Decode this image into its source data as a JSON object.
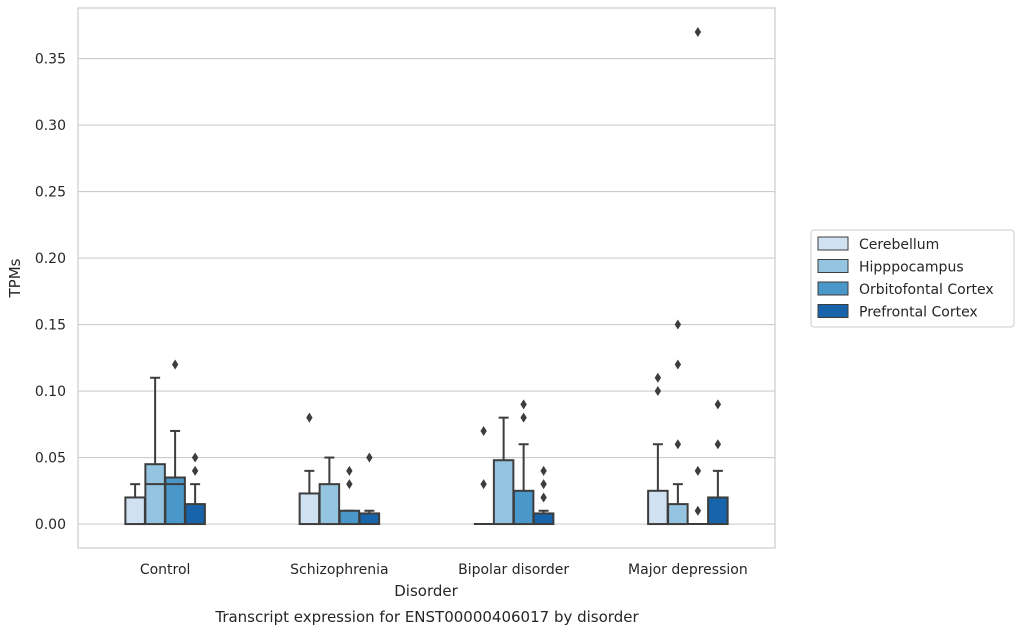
{
  "chart_data": {
    "type": "boxplot",
    "caption": "Transcript expression for ENST00000406017 by disorder",
    "xlabel": "Disorder",
    "ylabel": "TPMs",
    "ylim": [
      -0.018,
      0.388
    ],
    "yticks": [
      0.0,
      0.05,
      0.1,
      0.15,
      0.2,
      0.25,
      0.3,
      0.35
    ],
    "ytick_labels": [
      "0.00",
      "0.05",
      "0.10",
      "0.15",
      "0.20",
      "0.25",
      "0.30",
      "0.35"
    ],
    "grid": "horizontal",
    "legend_position": "right",
    "categories": [
      "Control",
      "Schizophrenia",
      "Bipolar disorder",
      "Major depression"
    ],
    "series": [
      {
        "name": "Cerebellum",
        "color": "#d0e1f2",
        "boxes": [
          {
            "q1": 0.0,
            "median": 0.0,
            "q3": 0.02,
            "whisker_low": 0.0,
            "whisker_high": 0.03,
            "outliers": []
          },
          {
            "q1": 0.0,
            "median": 0.0,
            "q3": 0.023,
            "whisker_low": 0.0,
            "whisker_high": 0.04,
            "outliers": [
              0.08
            ]
          },
          {
            "q1": 0.0,
            "median": 0.0,
            "q3": 0.0,
            "whisker_low": 0.0,
            "whisker_high": 0.0,
            "outliers": [
              0.03,
              0.07
            ]
          },
          {
            "q1": 0.0,
            "median": 0.0,
            "q3": 0.025,
            "whisker_low": 0.0,
            "whisker_high": 0.06,
            "outliers": [
              0.1,
              0.11
            ]
          }
        ]
      },
      {
        "name": "Hipppocampus",
        "color": "#94c4df",
        "boxes": [
          {
            "q1": 0.0,
            "median": 0.03,
            "q3": 0.045,
            "whisker_low": 0.0,
            "whisker_high": 0.11,
            "outliers": []
          },
          {
            "q1": 0.0,
            "median": 0.0,
            "q3": 0.03,
            "whisker_low": 0.0,
            "whisker_high": 0.05,
            "outliers": []
          },
          {
            "q1": 0.0,
            "median": 0.0,
            "q3": 0.048,
            "whisker_low": 0.0,
            "whisker_high": 0.08,
            "outliers": []
          },
          {
            "q1": 0.0,
            "median": 0.0,
            "q3": 0.015,
            "whisker_low": 0.0,
            "whisker_high": 0.03,
            "outliers": [
              0.06,
              0.12,
              0.15
            ]
          }
        ]
      },
      {
        "name": "Orbitofontal Cortex",
        "color": "#4a98c9",
        "boxes": [
          {
            "q1": 0.0,
            "median": 0.03,
            "q3": 0.035,
            "whisker_low": 0.0,
            "whisker_high": 0.07,
            "outliers": [
              0.12
            ]
          },
          {
            "q1": 0.0,
            "median": 0.0,
            "q3": 0.01,
            "whisker_low": 0.0,
            "whisker_high": 0.01,
            "outliers": [
              0.03,
              0.04
            ]
          },
          {
            "q1": 0.0,
            "median": 0.0,
            "q3": 0.025,
            "whisker_low": 0.0,
            "whisker_high": 0.06,
            "outliers": [
              0.08,
              0.09
            ]
          },
          {
            "q1": 0.0,
            "median": 0.0,
            "q3": 0.0,
            "whisker_low": 0.0,
            "whisker_high": 0.0,
            "outliers": [
              0.01,
              0.04,
              0.37
            ]
          }
        ]
      },
      {
        "name": "Prefrontal Cortex",
        "color": "#1764ab",
        "boxes": [
          {
            "q1": 0.0,
            "median": 0.0,
            "q3": 0.015,
            "whisker_low": 0.0,
            "whisker_high": 0.03,
            "outliers": [
              0.04,
              0.05
            ]
          },
          {
            "q1": 0.0,
            "median": 0.0,
            "q3": 0.008,
            "whisker_low": 0.0,
            "whisker_high": 0.01,
            "outliers": [
              0.05
            ]
          },
          {
            "q1": 0.0,
            "median": 0.0,
            "q3": 0.008,
            "whisker_low": 0.0,
            "whisker_high": 0.01,
            "outliers": [
              0.02,
              0.03,
              0.04
            ]
          },
          {
            "q1": 0.0,
            "median": 0.0,
            "q3": 0.02,
            "whisker_low": 0.0,
            "whisker_high": 0.04,
            "outliers": [
              0.06,
              0.09
            ]
          }
        ]
      }
    ]
  }
}
